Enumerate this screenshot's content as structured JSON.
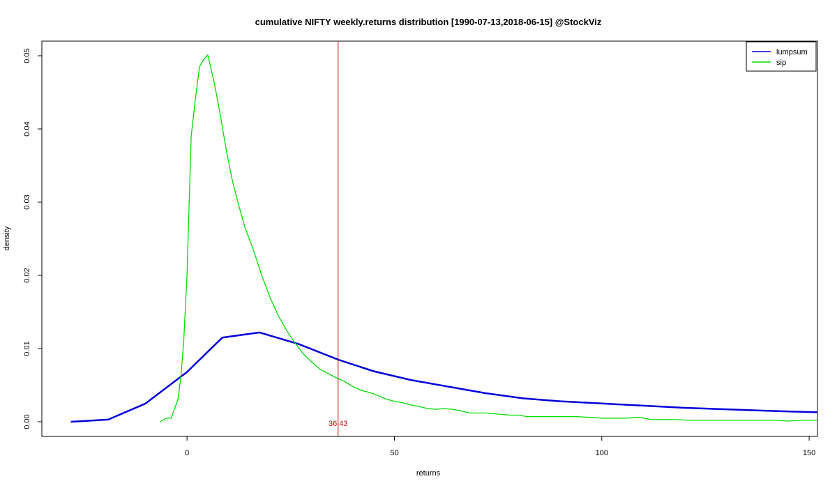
{
  "chart_data": {
    "type": "line",
    "title": "cumulative NIFTY weekly.returns distribution [1990-07-13,2018-06-15] @StockViz",
    "xlabel": "returns",
    "ylabel": "density",
    "xlim": [
      -35,
      152
    ],
    "ylim": [
      -0.002,
      0.052
    ],
    "xticks": [
      0,
      50,
      100,
      150
    ],
    "xtick_labels": [
      "0",
      "50",
      "100",
      "150"
    ],
    "yticks": [
      0.0,
      0.01,
      0.02,
      0.03,
      0.04,
      0.05
    ],
    "ytick_labels": [
      "0.00",
      "0.01",
      "0.02",
      "0.03",
      "0.04",
      "0.05"
    ],
    "grid": false,
    "legend_position": "top-right",
    "series": [
      {
        "name": "lumpsum",
        "color": "#0000dd",
        "x": [
          -28,
          -19,
          -10,
          0,
          8.5,
          17.5,
          27,
          36.4,
          45,
          54,
          63,
          72,
          81,
          90,
          100,
          110,
          120,
          130,
          140,
          152
        ],
        "y": [
          0.0,
          0.0003,
          0.0025,
          0.0068,
          0.0115,
          0.0122,
          0.0106,
          0.0085,
          0.0069,
          0.0057,
          0.0048,
          0.0039,
          0.0032,
          0.0028,
          0.0025,
          0.0022,
          0.0019,
          0.0017,
          0.0015,
          0.0013
        ]
      },
      {
        "name": "sip",
        "color": "#00dd00",
        "x": [
          -6.5,
          -5,
          -3.8,
          -3,
          -2.2,
          -1.5,
          -0.8,
          0,
          1,
          2,
          3,
          4,
          5,
          6.5,
          8,
          9.5,
          11,
          12.5,
          14,
          16,
          18,
          20,
          22,
          24,
          26,
          28,
          30,
          32,
          34,
          36,
          38,
          40,
          42,
          44,
          46,
          48,
          50,
          52,
          54,
          56,
          58,
          60,
          62,
          64,
          66,
          68,
          70,
          72,
          74,
          76,
          78,
          80,
          82,
          85,
          88,
          91,
          94,
          97,
          100,
          103,
          106,
          109,
          112,
          115,
          118,
          121,
          124,
          127,
          130,
          133,
          136,
          139,
          142,
          145,
          148,
          152
        ],
        "y": [
          0.0,
          0.0005,
          0.0005,
          0.0018,
          0.003,
          0.006,
          0.011,
          0.02,
          0.039,
          0.044,
          0.0485,
          0.0495,
          0.0501,
          0.0465,
          0.042,
          0.037,
          0.0328,
          0.0295,
          0.0265,
          0.0235,
          0.02,
          0.017,
          0.0145,
          0.0125,
          0.0108,
          0.0093,
          0.0082,
          0.0072,
          0.0066,
          0.006,
          0.0055,
          0.0048,
          0.0043,
          0.004,
          0.0036,
          0.0031,
          0.0028,
          0.0026,
          0.0023,
          0.0021,
          0.0018,
          0.0017,
          0.0018,
          0.0017,
          0.0015,
          0.0012,
          0.0012,
          0.0012,
          0.0011,
          0.001,
          0.0009,
          0.0009,
          0.0007,
          0.0007,
          0.0007,
          0.0007,
          0.0007,
          0.0006,
          0.0005,
          0.0005,
          0.0005,
          0.0006,
          0.0003,
          0.0003,
          0.0003,
          0.0002,
          0.0002,
          0.0002,
          0.0002,
          0.0002,
          0.0002,
          0.0002,
          0.0002,
          0.0001,
          0.0002,
          0.0002
        ]
      }
    ],
    "vline": {
      "x": 36.43,
      "label": "36.43",
      "color": "#cc0000"
    }
  }
}
